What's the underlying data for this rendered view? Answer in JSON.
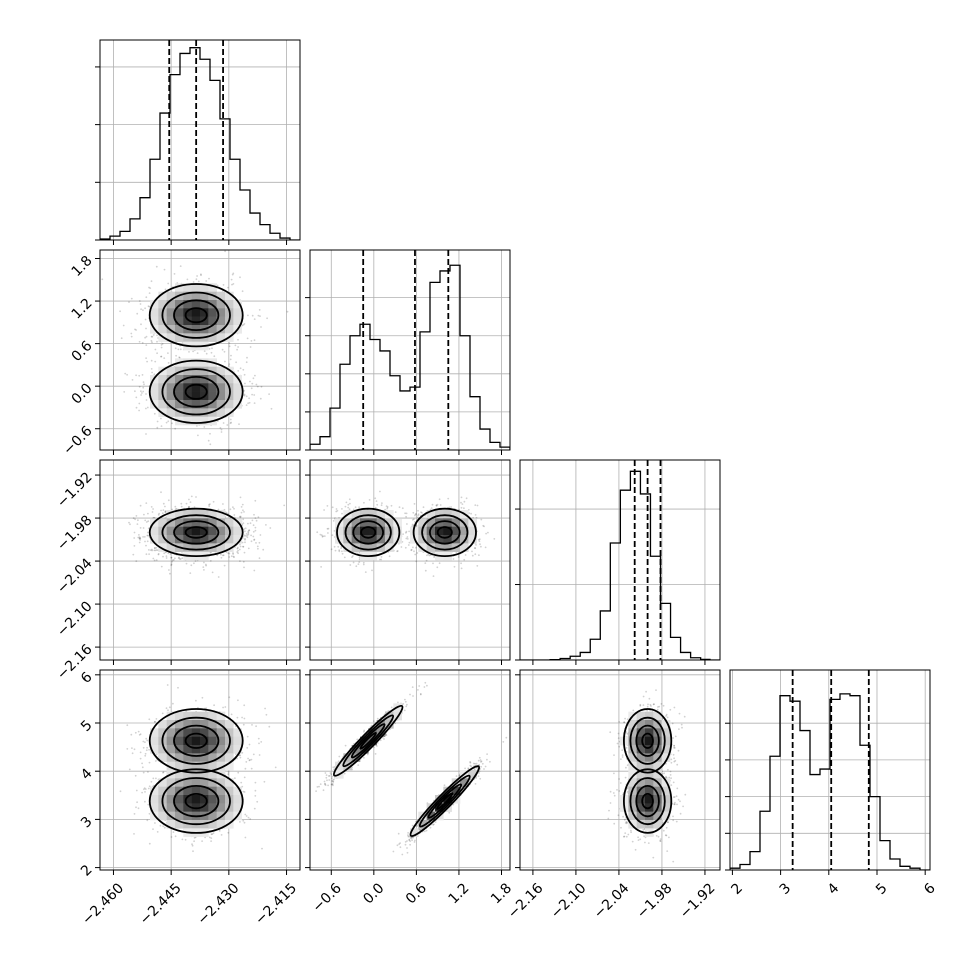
{
  "chart_data": {
    "type": "corner",
    "title": "",
    "colors": {
      "line": "#000000",
      "grid": "#b0b0b0",
      "points": "#000000",
      "background": "#ffffff"
    },
    "grid": true,
    "parameters": [
      {
        "range": [
          -2.4635,
          -2.4115
        ],
        "ticks": [
          -2.46,
          -2.445,
          -2.43,
          -2.415
        ],
        "tick_labels": [
          "−2.460",
          "−2.445",
          "−2.430",
          "−2.415"
        ],
        "quantiles": [
          -2.4455,
          -2.4385,
          -2.4315
        ],
        "hist": {
          "edges": [
            -2.4635,
            -2.4609,
            -2.4583,
            -2.4557,
            -2.4531,
            -2.4505,
            -2.4479,
            -2.4453,
            -2.4427,
            -2.4401,
            -2.4375,
            -2.4349,
            -2.4323,
            -2.4297,
            -2.4271,
            -2.4245,
            -2.4219,
            -2.4193,
            -2.4167,
            -2.4141,
            -2.4115
          ],
          "counts": [
            0.005,
            0.02,
            0.045,
            0.11,
            0.22,
            0.42,
            0.66,
            0.86,
            0.97,
            1.0,
            0.94,
            0.83,
            0.63,
            0.42,
            0.26,
            0.14,
            0.08,
            0.035,
            0.01,
            0.0
          ],
          "ymax": 1.04,
          "ticks": [
            0.0,
            0.3,
            0.6,
            0.9
          ]
        }
      },
      {
        "range": [
          -0.9,
          1.92
        ],
        "ticks": [
          -0.6,
          0.0,
          0.6,
          1.2,
          1.8
        ],
        "tick_labels": [
          "−0.6",
          "0.0",
          "0.6",
          "1.2",
          "1.8"
        ],
        "quantiles": [
          -0.15,
          0.58,
          1.05
        ],
        "hist": {
          "edges": [
            -0.9,
            -0.759,
            -0.618,
            -0.477,
            -0.336,
            -0.195,
            -0.054,
            0.087,
            0.228,
            0.369,
            0.51,
            0.651,
            0.792,
            0.933,
            1.074,
            1.215,
            1.356,
            1.497,
            1.638,
            1.779,
            1.92
          ],
          "counts": [
            0.03,
            0.07,
            0.22,
            0.45,
            0.6,
            0.66,
            0.58,
            0.52,
            0.39,
            0.31,
            0.33,
            0.62,
            0.88,
            0.94,
            0.97,
            0.6,
            0.28,
            0.11,
            0.04,
            0.015
          ],
          "ymax": 1.05,
          "ticks": [
            0.0,
            0.2,
            0.4,
            0.6,
            0.8
          ]
        }
      },
      {
        "range": [
          -2.178,
          -1.899
        ],
        "ticks": [
          -2.16,
          -2.1,
          -2.04,
          -1.98,
          -1.92
        ],
        "tick_labels": [
          "−2.16",
          "−2.10",
          "−2.04",
          "−1.98",
          "−1.92"
        ],
        "quantiles": [
          -2.018,
          -2.0,
          -1.982
        ],
        "hist": {
          "edges": [
            -2.178,
            -2.164,
            -2.15,
            -2.136,
            -2.122,
            -2.108,
            -2.094,
            -2.08,
            -2.066,
            -2.052,
            -2.038,
            -2.024,
            -2.01,
            -1.996,
            -1.982,
            -1.968,
            -1.954,
            -1.94,
            -1.926,
            -1.913,
            -1.899
          ],
          "counts": [
            0.0,
            0.0,
            0.0,
            0.002,
            0.008,
            0.02,
            0.04,
            0.11,
            0.26,
            0.62,
            0.9,
            1.0,
            0.88,
            0.55,
            0.3,
            0.12,
            0.04,
            0.012,
            0.003,
            0.0
          ],
          "ymax": 1.06,
          "ticks": [
            0.0,
            0.4,
            0.8
          ]
        }
      },
      {
        "range": [
          1.95,
          6.1
        ],
        "ticks": [
          2,
          3,
          4,
          5,
          6
        ],
        "tick_labels": [
          "2",
          "3",
          "4",
          "5",
          "6"
        ],
        "quantiles": [
          3.25,
          4.05,
          4.83
        ],
        "hist": {
          "edges": [
            1.95,
            2.1575,
            2.365,
            2.5725,
            2.78,
            2.9875,
            3.195,
            3.4025,
            3.61,
            3.8175,
            4.025,
            4.2325,
            4.44,
            4.6475,
            4.855,
            5.0625,
            5.27,
            5.4775,
            5.685,
            5.8925,
            6.1
          ],
          "counts": [
            0.01,
            0.03,
            0.1,
            0.32,
            0.62,
            0.95,
            0.92,
            0.76,
            0.52,
            0.55,
            0.93,
            0.96,
            0.95,
            0.68,
            0.4,
            0.16,
            0.06,
            0.02,
            0.01,
            0.0
          ],
          "ymax": 1.09,
          "ticks": [
            0.0,
            0.2,
            0.4,
            0.6,
            0.8
          ]
        }
      }
    ],
    "joint": [
      {
        "row": 1,
        "col": 0,
        "modes": [
          {
            "mx": -2.4385,
            "my": 1.0,
            "sx": 0.0055,
            "sy": 0.2,
            "rho": 0.0,
            "w": 0.5
          },
          {
            "mx": -2.4385,
            "my": -0.08,
            "sx": 0.0055,
            "sy": 0.2,
            "rho": 0.0,
            "w": 0.5
          }
        ]
      },
      {
        "row": 2,
        "col": 0,
        "modes": [
          {
            "mx": -2.4385,
            "my": -2.0,
            "sx": 0.0055,
            "sy": 0.015,
            "rho": 0.0,
            "w": 1.0
          }
        ]
      },
      {
        "row": 2,
        "col": 1,
        "modes": [
          {
            "mx": -0.08,
            "my": -2.0,
            "sx": 0.2,
            "sy": 0.015,
            "rho": 0.0,
            "w": 0.5
          },
          {
            "mx": 1.0,
            "my": -2.0,
            "sx": 0.2,
            "sy": 0.015,
            "rho": 0.0,
            "w": 0.5
          }
        ]
      },
      {
        "row": 3,
        "col": 0,
        "modes": [
          {
            "mx": -2.4385,
            "my": 4.63,
            "sx": 0.0055,
            "sy": 0.3,
            "rho": 0.0,
            "w": 0.5
          },
          {
            "mx": -2.4385,
            "my": 3.38,
            "sx": 0.0055,
            "sy": 0.3,
            "rho": 0.0,
            "w": 0.5
          }
        ]
      },
      {
        "row": 3,
        "col": 1,
        "modes": [
          {
            "mx": -0.08,
            "my": 4.63,
            "sx": 0.22,
            "sy": 0.33,
            "rho": 0.96,
            "w": 0.5
          },
          {
            "mx": 1.0,
            "my": 3.38,
            "sx": 0.22,
            "sy": 0.33,
            "rho": 0.96,
            "w": 0.5
          }
        ]
      },
      {
        "row": 3,
        "col": 2,
        "modes": [
          {
            "mx": -2.0,
            "my": 4.63,
            "sx": 0.015,
            "sy": 0.3,
            "rho": 0.0,
            "w": 0.5
          },
          {
            "mx": -2.0,
            "my": 3.38,
            "sx": 0.015,
            "sy": 0.3,
            "rho": 0.0,
            "w": 0.5
          }
        ]
      }
    ]
  }
}
